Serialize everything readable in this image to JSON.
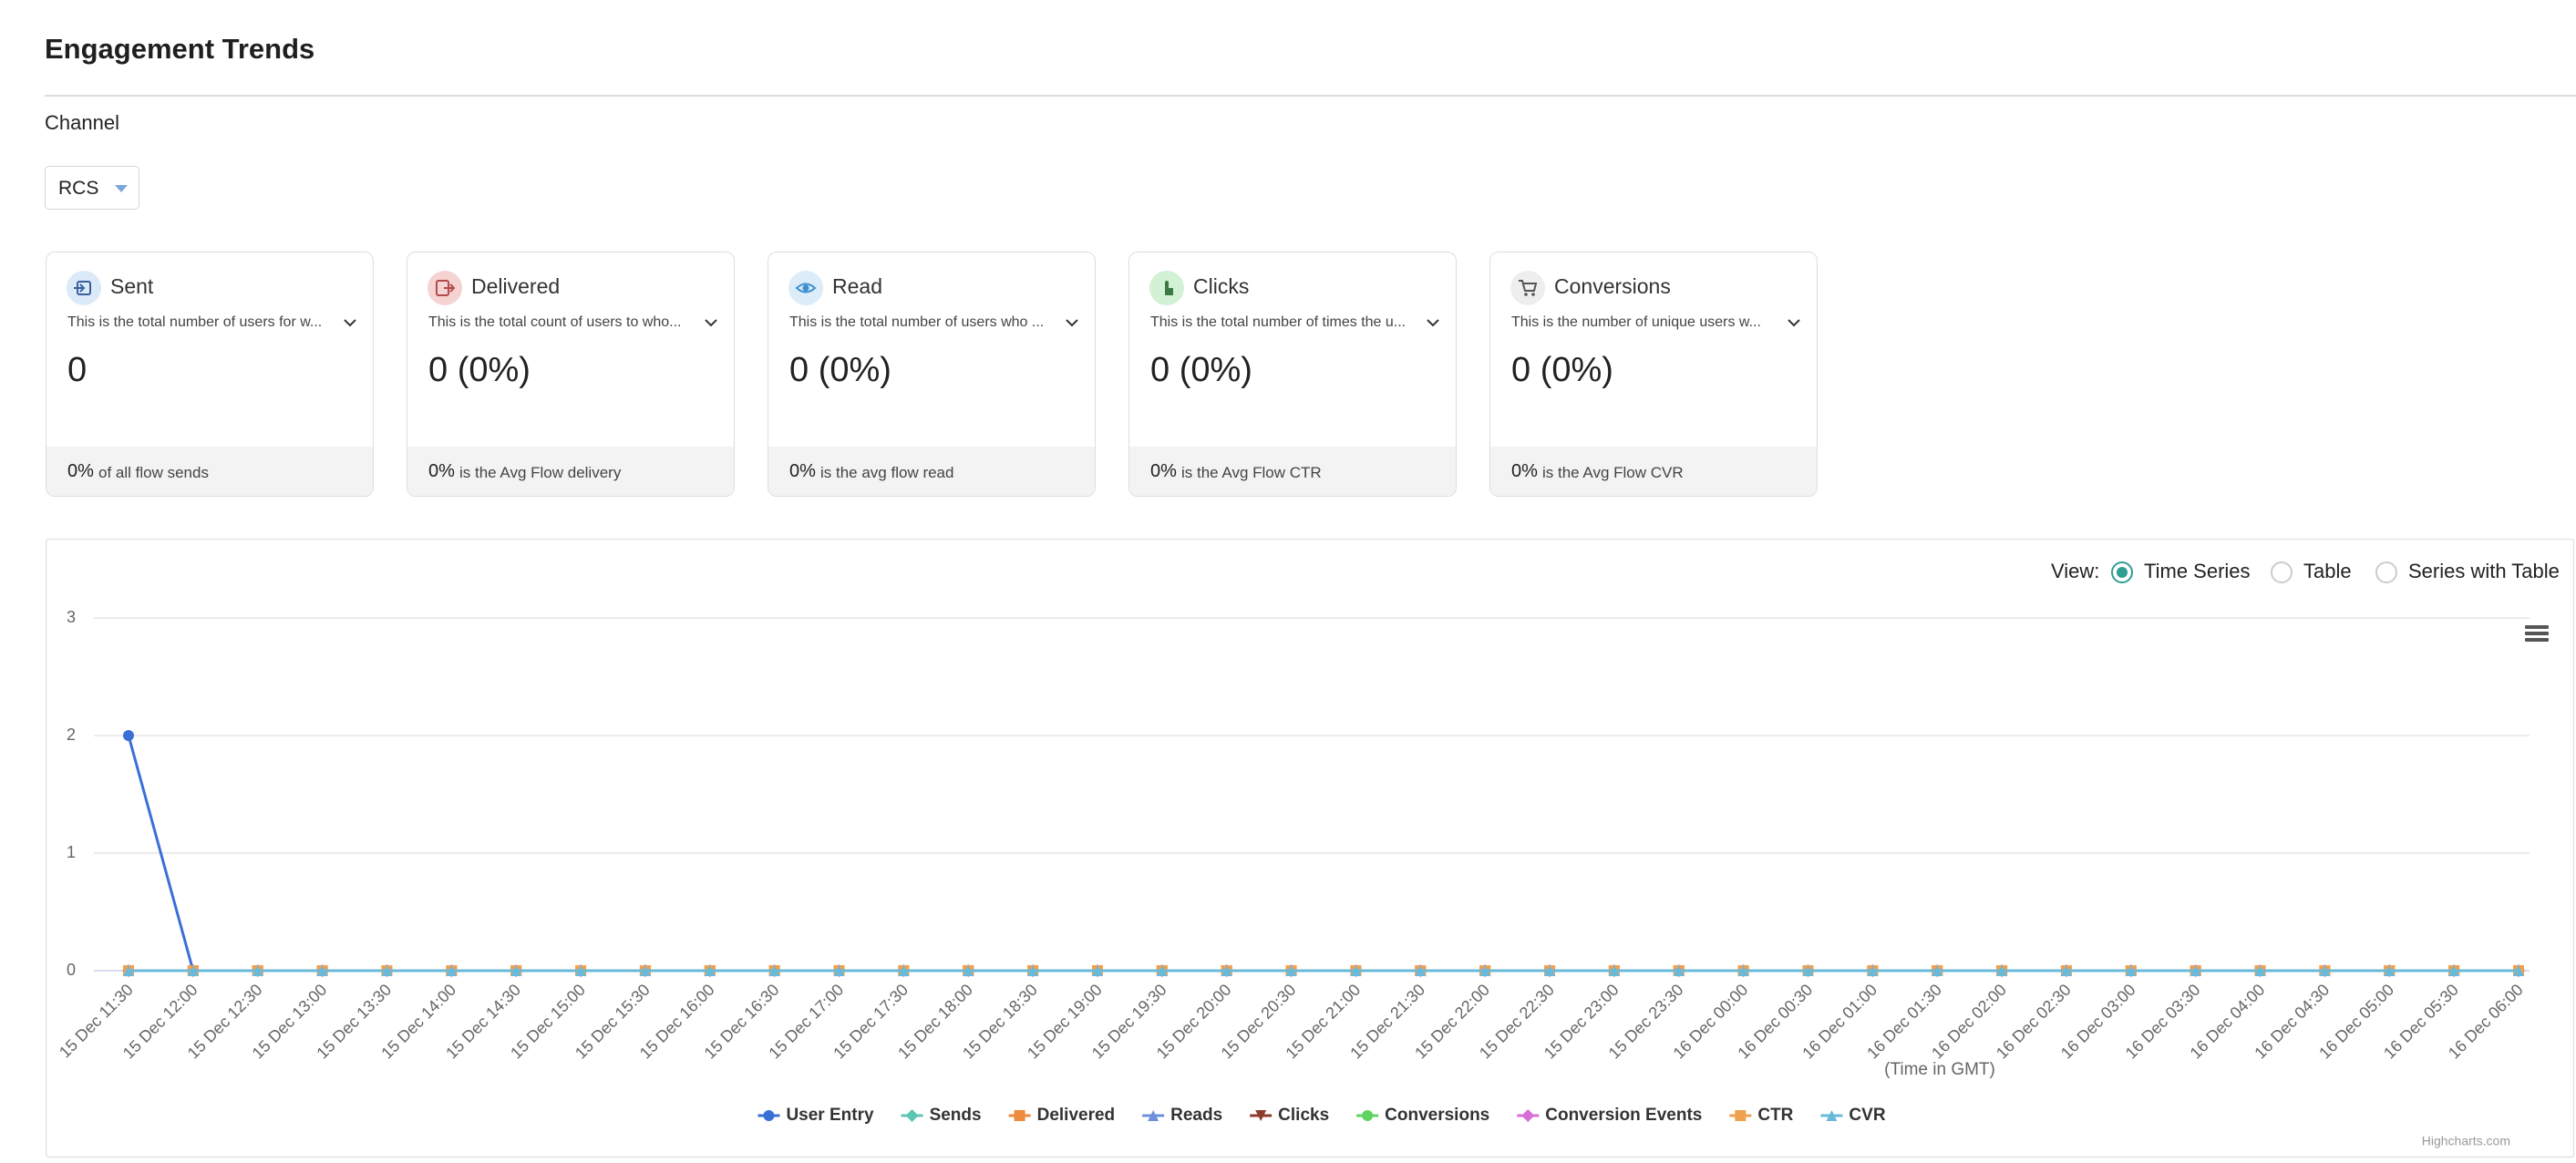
{
  "header": {
    "title": "Engagement Trends"
  },
  "filter": {
    "label": "Channel",
    "value": "RCS"
  },
  "cards": [
    {
      "label": "Sent",
      "description": "This is the total number of users for w...",
      "value": "0",
      "footer_value": "0%",
      "footer_text": "of all flow sends"
    },
    {
      "label": "Delivered",
      "description": "This is the total count of users to who...",
      "value": "0 (0%)",
      "footer_value": "0%",
      "footer_text": "is the Avg Flow delivery"
    },
    {
      "label": "Read",
      "description": "This is the total number of users who ...",
      "value": "0 (0%)",
      "footer_value": "0%",
      "footer_text": "is the avg flow read"
    },
    {
      "label": "Clicks",
      "description": "This is the total number of times the u...",
      "value": "0 (0%)",
      "footer_value": "0%",
      "footer_text": "is the Avg Flow CTR"
    },
    {
      "label": "Conversions",
      "description": "This is the number of unique users w...",
      "value": "0 (0%)",
      "footer_value": "0%",
      "footer_text": "is the Avg Flow CVR"
    }
  ],
  "view": {
    "label": "View:",
    "options": [
      "Time Series",
      "Table",
      "Series with Table"
    ],
    "selected": 0
  },
  "chart_data": {
    "type": "line",
    "categories": [
      "15 Dec 11:30",
      "15 Dec 12:00",
      "15 Dec 12:30",
      "15 Dec 13:00",
      "15 Dec 13:30",
      "15 Dec 14:00",
      "15 Dec 14:30",
      "15 Dec 15:00",
      "15 Dec 15:30",
      "15 Dec 16:00",
      "15 Dec 16:30",
      "15 Dec 17:00",
      "15 Dec 17:30",
      "15 Dec 18:00",
      "15 Dec 18:30",
      "15 Dec 19:00",
      "15 Dec 19:30",
      "15 Dec 20:00",
      "15 Dec 20:30",
      "15 Dec 21:00",
      "15 Dec 21:30",
      "15 Dec 22:00",
      "15 Dec 22:30",
      "15 Dec 23:00",
      "15 Dec 23:30",
      "16 Dec 00:00",
      "16 Dec 00:30",
      "16 Dec 01:00",
      "16 Dec 01:30",
      "16 Dec 02:00",
      "16 Dec 02:30",
      "16 Dec 03:00",
      "16 Dec 03:30",
      "16 Dec 04:00",
      "16 Dec 04:30",
      "16 Dec 05:00",
      "16 Dec 05:30",
      "16 Dec 06:00"
    ],
    "series": [
      {
        "name": "User Entry",
        "color": "#3a6fd8",
        "values": [
          2,
          0,
          0,
          0,
          0,
          0,
          0,
          0,
          0,
          0,
          0,
          0,
          0,
          0,
          0,
          0,
          0,
          0,
          0,
          0,
          0,
          0,
          0,
          0,
          0,
          0,
          0,
          0,
          0,
          0,
          0,
          0,
          0,
          0,
          0,
          0,
          0,
          0
        ]
      },
      {
        "name": "Sends",
        "color": "#5cc6b5",
        "values": [
          0,
          0,
          0,
          0,
          0,
          0,
          0,
          0,
          0,
          0,
          0,
          0,
          0,
          0,
          0,
          0,
          0,
          0,
          0,
          0,
          0,
          0,
          0,
          0,
          0,
          0,
          0,
          0,
          0,
          0,
          0,
          0,
          0,
          0,
          0,
          0,
          0,
          0
        ]
      },
      {
        "name": "Delivered",
        "color": "#ee8a3c",
        "values": [
          0,
          0,
          0,
          0,
          0,
          0,
          0,
          0,
          0,
          0,
          0,
          0,
          0,
          0,
          0,
          0,
          0,
          0,
          0,
          0,
          0,
          0,
          0,
          0,
          0,
          0,
          0,
          0,
          0,
          0,
          0,
          0,
          0,
          0,
          0,
          0,
          0,
          0
        ]
      },
      {
        "name": "Reads",
        "color": "#6d8fdc",
        "values": [
          0,
          0,
          0,
          0,
          0,
          0,
          0,
          0,
          0,
          0,
          0,
          0,
          0,
          0,
          0,
          0,
          0,
          0,
          0,
          0,
          0,
          0,
          0,
          0,
          0,
          0,
          0,
          0,
          0,
          0,
          0,
          0,
          0,
          0,
          0,
          0,
          0,
          0
        ]
      },
      {
        "name": "Clicks",
        "color": "#8e3b2c",
        "values": [
          0,
          0,
          0,
          0,
          0,
          0,
          0,
          0,
          0,
          0,
          0,
          0,
          0,
          0,
          0,
          0,
          0,
          0,
          0,
          0,
          0,
          0,
          0,
          0,
          0,
          0,
          0,
          0,
          0,
          0,
          0,
          0,
          0,
          0,
          0,
          0,
          0,
          0
        ]
      },
      {
        "name": "Conversions",
        "color": "#5fd460",
        "values": [
          0,
          0,
          0,
          0,
          0,
          0,
          0,
          0,
          0,
          0,
          0,
          0,
          0,
          0,
          0,
          0,
          0,
          0,
          0,
          0,
          0,
          0,
          0,
          0,
          0,
          0,
          0,
          0,
          0,
          0,
          0,
          0,
          0,
          0,
          0,
          0,
          0,
          0
        ]
      },
      {
        "name": "Conversion Events",
        "color": "#d86cd8",
        "values": [
          0,
          0,
          0,
          0,
          0,
          0,
          0,
          0,
          0,
          0,
          0,
          0,
          0,
          0,
          0,
          0,
          0,
          0,
          0,
          0,
          0,
          0,
          0,
          0,
          0,
          0,
          0,
          0,
          0,
          0,
          0,
          0,
          0,
          0,
          0,
          0,
          0,
          0
        ]
      },
      {
        "name": "CTR",
        "color": "#f0a04f",
        "values": [
          0,
          0,
          0,
          0,
          0,
          0,
          0,
          0,
          0,
          0,
          0,
          0,
          0,
          0,
          0,
          0,
          0,
          0,
          0,
          0,
          0,
          0,
          0,
          0,
          0,
          0,
          0,
          0,
          0,
          0,
          0,
          0,
          0,
          0,
          0,
          0,
          0,
          0
        ]
      },
      {
        "name": "CVR",
        "color": "#6ab9d9",
        "values": [
          0,
          0,
          0,
          0,
          0,
          0,
          0,
          0,
          0,
          0,
          0,
          0,
          0,
          0,
          0,
          0,
          0,
          0,
          0,
          0,
          0,
          0,
          0,
          0,
          0,
          0,
          0,
          0,
          0,
          0,
          0,
          0,
          0,
          0,
          0,
          0,
          0,
          0
        ]
      }
    ],
    "ylim": [
      0,
      3
    ],
    "yticks": [
      0,
      1,
      2,
      3
    ],
    "grid": true,
    "x_axis_title": "(Time in GMT)",
    "credits": "Highcharts.com"
  }
}
